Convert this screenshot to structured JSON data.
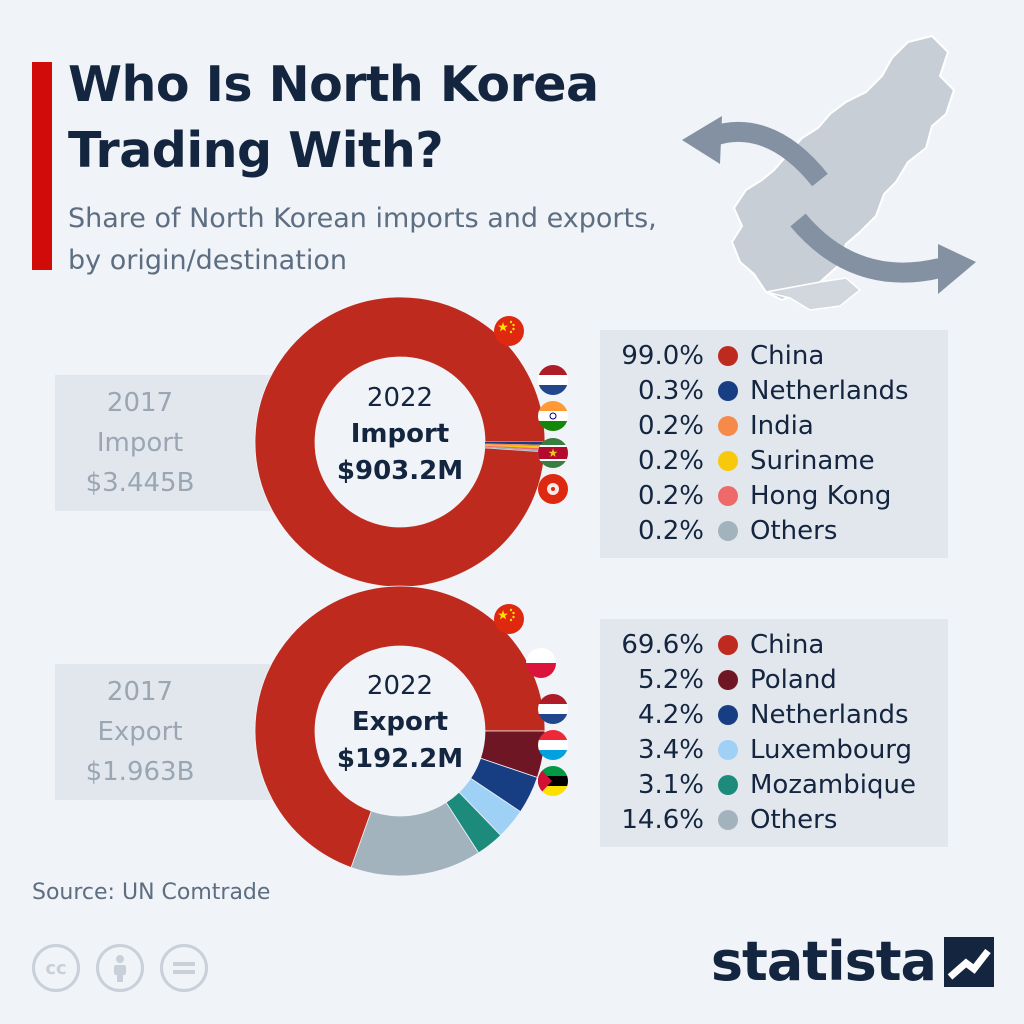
{
  "header": {
    "title": "Who Is North Korea Trading With?",
    "subtitle": "Share of North Korean imports and exports, by origin/destination"
  },
  "colors": {
    "accent": "#d10a0a",
    "text": "#14253f",
    "muted": "#5d6e82"
  },
  "chart_data": [
    {
      "type": "pie",
      "donut": true,
      "center": {
        "year": "2022",
        "label": "Import",
        "value": "$903.2M"
      },
      "comparison": {
        "year": "2017",
        "label": "Import",
        "value": "$3.445B"
      },
      "slices": [
        {
          "name": "China",
          "value": 99.0,
          "label": "99.0%",
          "color": "#bf2a1e",
          "flag": "china-flag-icon"
        },
        {
          "name": "Netherlands",
          "value": 0.3,
          "label": "0.3%",
          "color": "#173e83",
          "flag": "netherlands-flag-icon"
        },
        {
          "name": "India",
          "value": 0.2,
          "label": "0.2%",
          "color": "#f58a4b",
          "flag": "india-flag-icon"
        },
        {
          "name": "Suriname",
          "value": 0.2,
          "label": "0.2%",
          "color": "#f7c90a",
          "flag": "suriname-flag-icon"
        },
        {
          "name": "Hong Kong",
          "value": 0.2,
          "label": "0.2%",
          "color": "#ee6a6a",
          "flag": "hong-kong-flag-icon"
        },
        {
          "name": "Others",
          "value": 0.2,
          "label": "0.2%",
          "color": "#a3b3bd",
          "flag": ""
        }
      ]
    },
    {
      "type": "pie",
      "donut": true,
      "center": {
        "year": "2022",
        "label": "Export",
        "value": "$192.2M"
      },
      "comparison": {
        "year": "2017",
        "label": "Export",
        "value": "$1.963B"
      },
      "slices": [
        {
          "name": "China",
          "value": 69.6,
          "label": "69.6%",
          "color": "#bf2a1e",
          "flag": "china-flag-icon"
        },
        {
          "name": "Poland",
          "value": 5.2,
          "label": "5.2%",
          "color": "#6e1624",
          "flag": "poland-flag-icon"
        },
        {
          "name": "Netherlands",
          "value": 4.2,
          "label": "4.2%",
          "color": "#173e83",
          "flag": "netherlands-flag-icon"
        },
        {
          "name": "Luxembourg",
          "value": 3.4,
          "label": "3.4%",
          "color": "#9fd1f7",
          "flag": "luxembourg-flag-icon"
        },
        {
          "name": "Mozambique",
          "value": 3.1,
          "label": "3.1%",
          "color": "#1d8b7c",
          "flag": "mozambique-flag-icon"
        },
        {
          "name": "Others",
          "value": 14.6,
          "label": "14.6%",
          "color": "#a3b3bd",
          "flag": ""
        }
      ]
    }
  ],
  "footer": {
    "source": "Source: UN Comtrade",
    "logo": "statista",
    "license_icons": [
      "cc-icon",
      "attribution-icon",
      "no-derivatives-icon"
    ]
  }
}
